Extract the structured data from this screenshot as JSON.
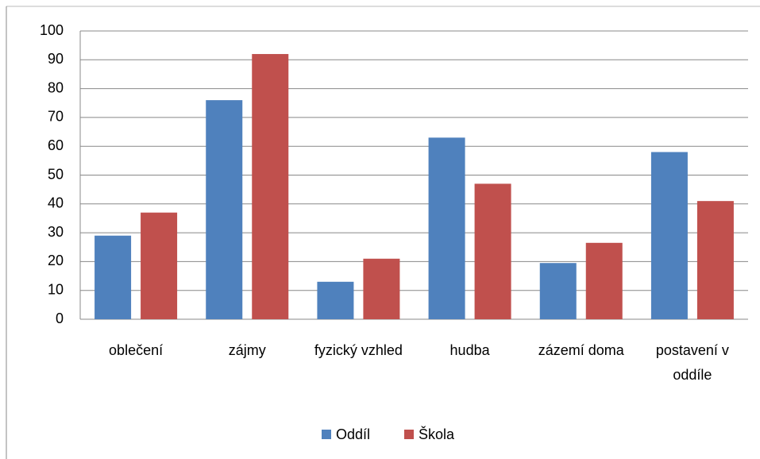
{
  "chart_data": {
    "type": "bar",
    "categories": [
      "oblečení",
      "zájmy",
      "fyzický vzhled",
      "hudba",
      "zázemí doma",
      "postavení v oddíle"
    ],
    "series": [
      {
        "name": "Oddíl",
        "color": "#4f81bd",
        "values": [
          29,
          76,
          13,
          63,
          19.5,
          58
        ]
      },
      {
        "name": "Škola",
        "color": "#c0504d",
        "values": [
          37,
          92,
          21,
          47,
          26.5,
          41
        ]
      }
    ],
    "ylim": [
      0,
      100
    ],
    "yticks": [
      0,
      10,
      20,
      30,
      40,
      50,
      60,
      70,
      80,
      90,
      100
    ],
    "grid": true,
    "legend": "bottom"
  }
}
